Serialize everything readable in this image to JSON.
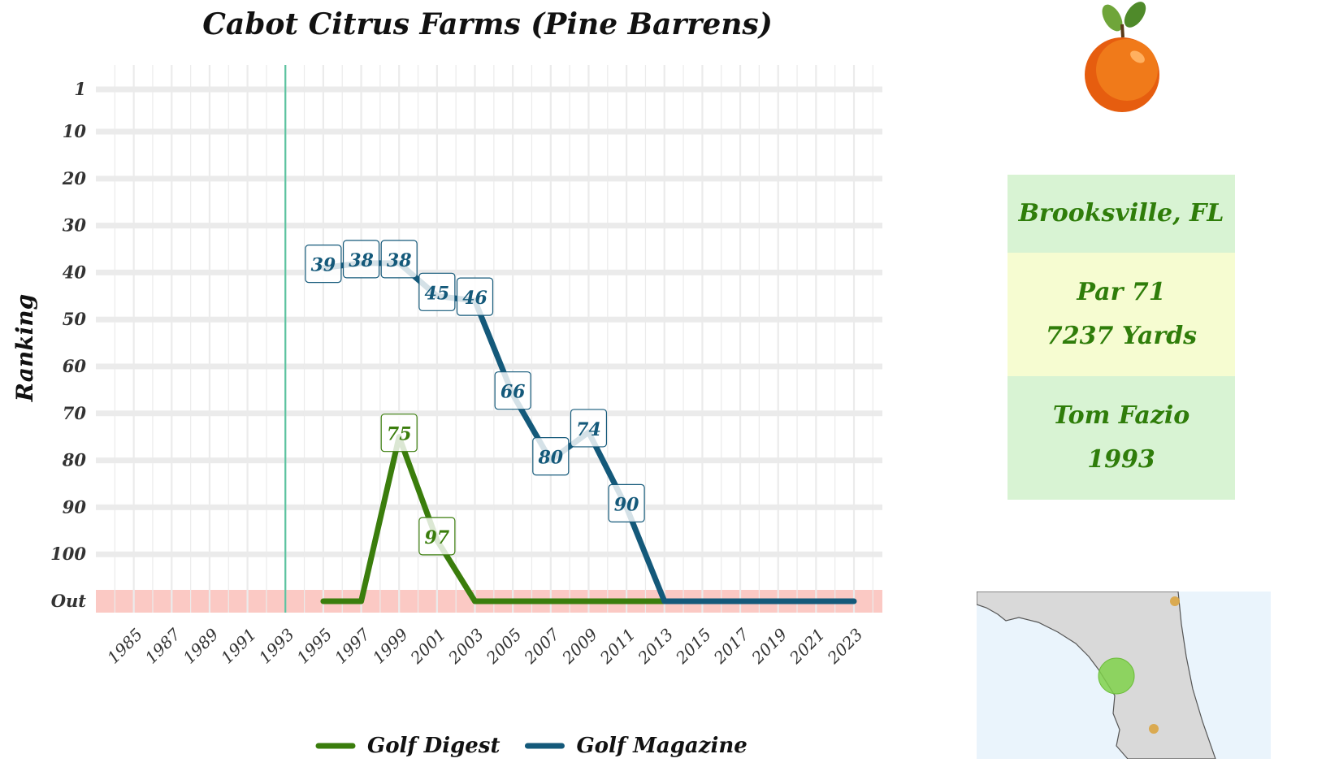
{
  "chart_data": {
    "type": "line",
    "title": "Cabot Citrus Farms (Pine Barrens)",
    "xlabel": "",
    "ylabel": "Ranking",
    "x_ticks": [
      "1985",
      "1987",
      "1989",
      "1991",
      "1993",
      "1995",
      "1997",
      "1999",
      "2001",
      "2003",
      "2005",
      "2007",
      "2009",
      "2011",
      "2013",
      "2015",
      "2017",
      "2019",
      "2021",
      "2023"
    ],
    "y_ticks": [
      {
        "label": "1",
        "value": 1
      },
      {
        "label": "10",
        "value": 10
      },
      {
        "label": "20",
        "value": 20
      },
      {
        "label": "30",
        "value": 30
      },
      {
        "label": "40",
        "value": 40
      },
      {
        "label": "50",
        "value": 50
      },
      {
        "label": "60",
        "value": 60
      },
      {
        "label": "70",
        "value": 70
      },
      {
        "label": "80",
        "value": 80
      },
      {
        "label": "90",
        "value": 90
      },
      {
        "label": "100",
        "value": 100
      },
      {
        "label": "Out",
        "value": 110
      }
    ],
    "x_range": [
      1983,
      2024.5
    ],
    "y_range": [
      1,
      110
    ],
    "y_reversed": true,
    "out_band_value": 110,
    "reference_year": 1993,
    "grid": true,
    "legend_position": "bottom",
    "series": [
      {
        "name": "Golf Digest",
        "color": "#3a7d0c",
        "points": [
          {
            "x": 1995,
            "y": "Out"
          },
          {
            "x": 1997,
            "y": "Out"
          },
          {
            "x": 1999,
            "y": 75
          },
          {
            "x": 2001,
            "y": 97
          },
          {
            "x": 2003,
            "y": "Out"
          },
          {
            "x": 2005,
            "y": "Out"
          },
          {
            "x": 2007,
            "y": "Out"
          },
          {
            "x": 2009,
            "y": "Out"
          },
          {
            "x": 2011,
            "y": "Out"
          },
          {
            "x": 2013,
            "y": "Out"
          }
        ],
        "labels": [
          {
            "x": 1999,
            "y": 75,
            "text": "75"
          },
          {
            "x": 2001,
            "y": 97,
            "text": "97"
          }
        ]
      },
      {
        "name": "Golf Magazine",
        "color": "#14597a",
        "points": [
          {
            "x": 1995,
            "y": 39
          },
          {
            "x": 1997,
            "y": 38
          },
          {
            "x": 1999,
            "y": 38
          },
          {
            "x": 2001,
            "y": 45
          },
          {
            "x": 2003,
            "y": 46
          },
          {
            "x": 2005,
            "y": 66
          },
          {
            "x": 2007,
            "y": 80
          },
          {
            "x": 2009,
            "y": 74
          },
          {
            "x": 2011,
            "y": 90
          },
          {
            "x": 2013,
            "y": "Out"
          },
          {
            "x": 2015,
            "y": "Out"
          },
          {
            "x": 2017,
            "y": "Out"
          },
          {
            "x": 2019,
            "y": "Out"
          },
          {
            "x": 2021,
            "y": "Out"
          },
          {
            "x": 2023,
            "y": "Out"
          }
        ],
        "labels": [
          {
            "x": 1995,
            "y": 39,
            "text": "39"
          },
          {
            "x": 1997,
            "y": 38,
            "text": "38"
          },
          {
            "x": 1999,
            "y": 38,
            "text": "38"
          },
          {
            "x": 2001,
            "y": 45,
            "text": "45"
          },
          {
            "x": 2003,
            "y": 46,
            "text": "46"
          },
          {
            "x": 2005,
            "y": 66,
            "text": "66"
          },
          {
            "x": 2007,
            "y": 80,
            "text": "80"
          },
          {
            "x": 2009,
            "y": 74,
            "text": "74"
          },
          {
            "x": 2011,
            "y": 90,
            "text": "90"
          }
        ]
      }
    ]
  },
  "colors": {
    "grid": "#ebebeb",
    "out_band": "#fbc9c4",
    "reference_line": "#5cc3a0",
    "location_bg": "#d8f3d3",
    "specs_bg": "#f6fcd1",
    "architect_bg": "#d8f3d3",
    "info_text": "#2f7d0a"
  },
  "info": {
    "location": "Brooksville, FL",
    "par": "Par 71",
    "yards": "7237 Yards",
    "architect": "Tom Fazio",
    "year": "1993"
  },
  "icons": {
    "logo": "orange-fruit-icon",
    "map": "florida-locator-map"
  }
}
